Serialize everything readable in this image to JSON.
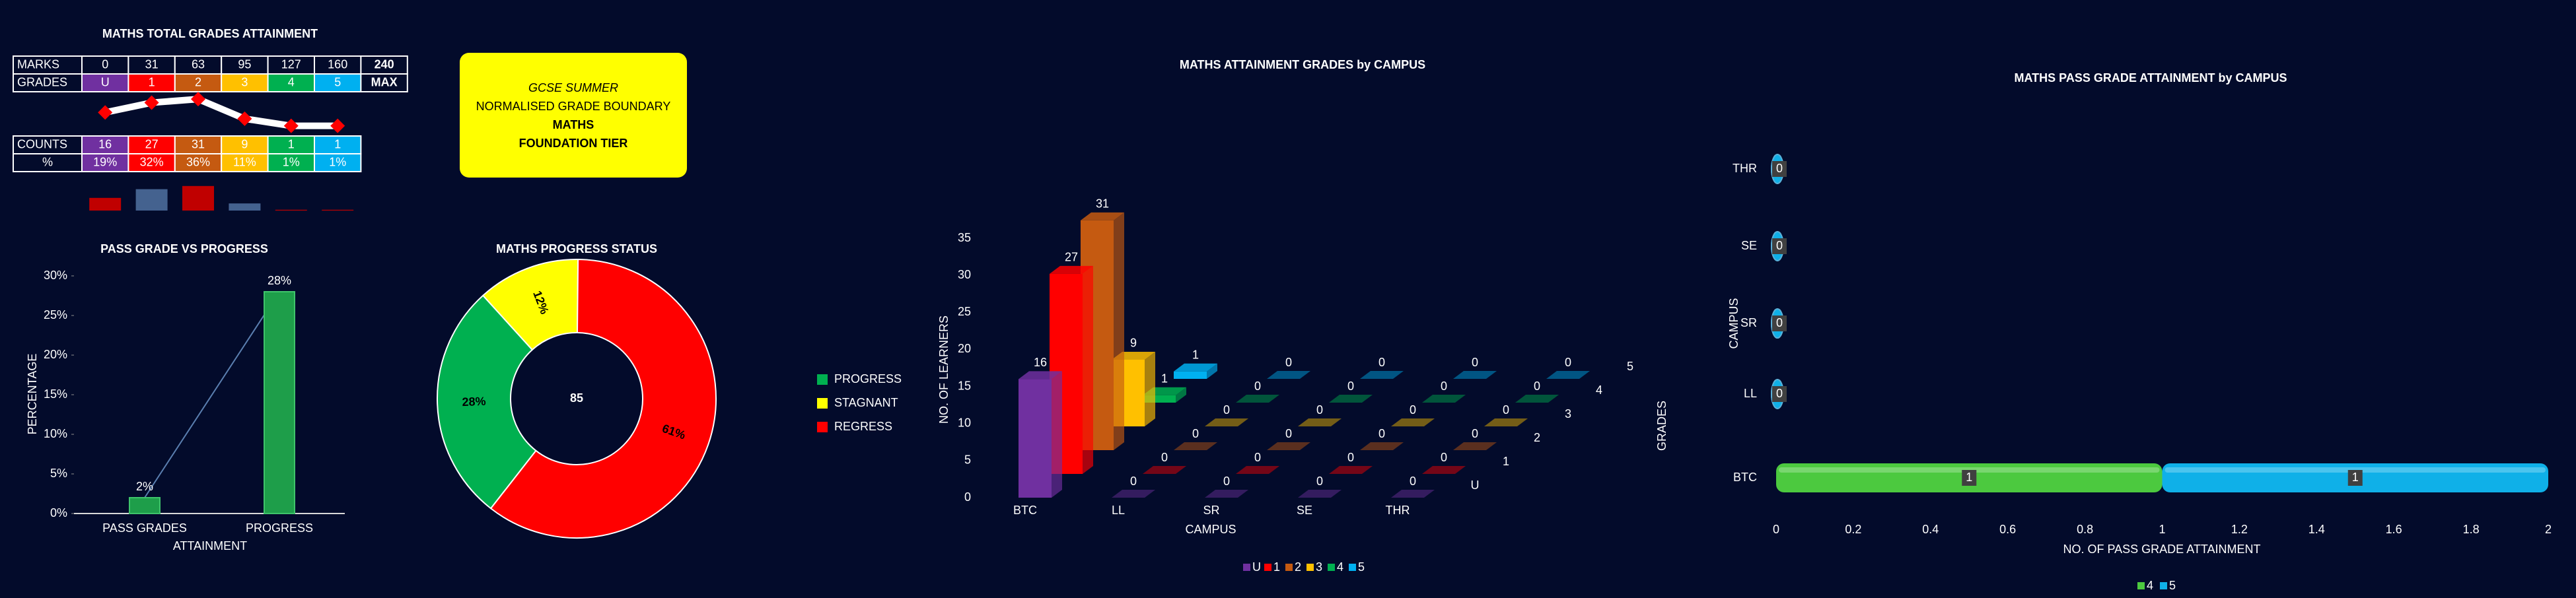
{
  "grade_table": {
    "title": "MATHS TOTAL GRADES ATTAINMENT",
    "marks_label": "MARKS",
    "grades_label": "GRADES",
    "marks": [
      0,
      31,
      63,
      95,
      127,
      160,
      240
    ],
    "grades": [
      "U",
      "1",
      "2",
      "3",
      "4",
      "5",
      "MAX"
    ],
    "grade_colors": [
      "#7030a0",
      "#ff0000",
      "#c55a11",
      "#ffc000",
      "#00b050",
      "#00b0f0"
    ],
    "counts_label": "COUNTS",
    "percent_label": "%",
    "counts": [
      16,
      27,
      31,
      9,
      1,
      1
    ],
    "percents": [
      "19%",
      "32%",
      "36%",
      "11%",
      "1%",
      "1%"
    ],
    "spark_line_color": "#ffffff",
    "spark_marker_color": "#ff0000",
    "spark_bar_colors": [
      "#c00000",
      "#44628f",
      "#c00000",
      "#44628f",
      "#c00000",
      "#c00000"
    ]
  },
  "info_box": {
    "lines": [
      "GCSE SUMMER",
      "NORMALISED GRADE BOUNDARY",
      "MATHS",
      "FOUNDATION TIER"
    ],
    "color": "#ffff00"
  },
  "chart_data": [
    {
      "type": "bar",
      "title": "PASS GRADE VS PROGRESS",
      "categories": [
        "PASS GRADES",
        "PROGRESS"
      ],
      "values": [
        2,
        28
      ],
      "value_labels": [
        "2%",
        "28%"
      ],
      "color": "#1e9e4a",
      "line_color": "#5b7fb0",
      "ylim": [
        0,
        30
      ],
      "yticks": [
        {
          "value": 0,
          "label": "0%"
        },
        {
          "value": 5,
          "label": "5%"
        },
        {
          "value": 10,
          "label": "10%"
        },
        {
          "value": 15,
          "label": "15%"
        },
        {
          "value": 20,
          "label": "20%"
        },
        {
          "value": 25,
          "label": "25%"
        },
        {
          "value": 30,
          "label": "30%"
        }
      ],
      "ylabel": "PERCENTAGE",
      "xlabel": "ATTAINMENT"
    },
    {
      "type": "donut",
      "title": "MATHS PROGRESS STATUS",
      "center_value": 85,
      "categories": [
        "PROGRESS",
        "STAGNANT",
        "REGRESS"
      ],
      "values": [
        28,
        12,
        61
      ],
      "value_labels": [
        "28%",
        "12%",
        "61%"
      ],
      "colors": [
        "#00b050",
        "#ffff00",
        "#ff0000"
      ],
      "legend": "right"
    },
    {
      "type": "bar3d",
      "title": "MATHS ATTAINMENT GRADES by CAMPUS",
      "categories": [
        "BTC",
        "LL",
        "SR",
        "SE",
        "THR"
      ],
      "series": [
        {
          "name": "U",
          "color": "#7030a0",
          "values": [
            16,
            0,
            0,
            0,
            0
          ]
        },
        {
          "name": "1",
          "color": "#ff0000",
          "values": [
            27,
            0,
            0,
            0,
            0
          ]
        },
        {
          "name": "2",
          "color": "#c55a11",
          "values": [
            31,
            0,
            0,
            0,
            0
          ]
        },
        {
          "name": "3",
          "color": "#ffc000",
          "values": [
            9,
            0,
            0,
            0,
            0
          ]
        },
        {
          "name": "4",
          "color": "#00b050",
          "values": [
            1,
            0,
            0,
            0,
            0
          ]
        },
        {
          "name": "5",
          "color": "#00b0f0",
          "values": [
            1,
            0,
            0,
            0,
            0
          ]
        }
      ],
      "ylim": [
        0,
        35
      ],
      "yticks": [
        0,
        5,
        10,
        15,
        20,
        25,
        30,
        35
      ],
      "xlabel": "CAMPUS",
      "ylabel": "NO. OF LEARNERS",
      "zlabel": "GRADES",
      "legend": "bottom"
    },
    {
      "type": "hbar_stacked",
      "title": "MATHS PASS GRADE ATTAINMENT by CAMPUS",
      "categories": [
        "BTC",
        "LL",
        "SR",
        "SE",
        "THR"
      ],
      "series": [
        {
          "name": "4",
          "color": "#4cc93f",
          "values": [
            1,
            0,
            0,
            0,
            0
          ]
        },
        {
          "name": "5",
          "color": "#0fb0e8",
          "values": [
            1,
            0,
            0,
            0,
            0
          ]
        }
      ],
      "xlim": [
        0,
        2
      ],
      "xticks": [
        0,
        0.2,
        0.4,
        0.6,
        0.8,
        1,
        1.2,
        1.4,
        1.6,
        1.8,
        2
      ],
      "xlabel": "NO. OF PASS GRADE ATTAINMENT",
      "ylabel": "CAMPUS",
      "legend": "bottom"
    }
  ]
}
